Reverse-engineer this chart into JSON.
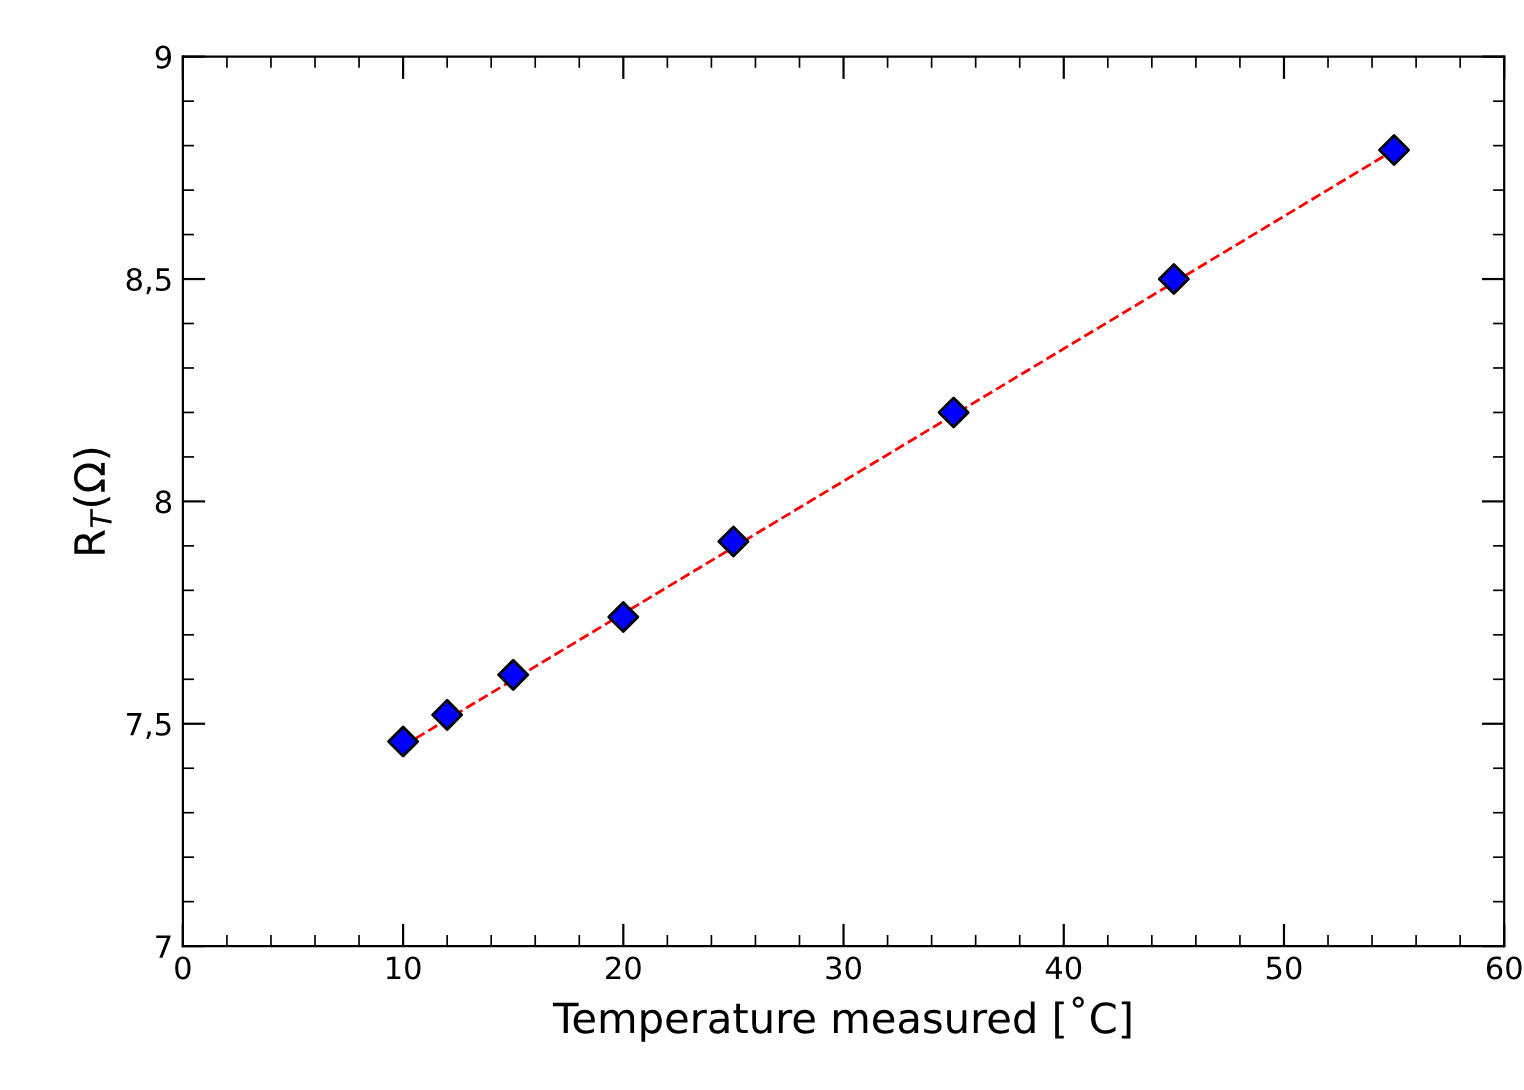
{
  "chart_data": {
    "type": "scatter",
    "xlabel": "Temperature measured [˚C]",
    "ylabel": "R$_{T}$(Ω)",
    "xlim": [
      0,
      60
    ],
    "xticks": [
      0,
      10,
      20,
      30,
      40,
      50,
      60
    ],
    "ylim": [
      7,
      9
    ],
    "yticks": [
      7,
      {
        "value": 7.5,
        "label": "7,5"
      },
      8,
      {
        "value": 8.5,
        "label": "8,5"
      },
      9
    ],
    "grid": false,
    "marker": "diamond",
    "series": [
      {
        "type": "line",
        "color": "#ff0000",
        "line_style": "dashed",
        "marker": "none",
        "x": [
          10,
          55
        ],
        "values": [
          7.45,
          8.79
        ]
      },
      {
        "color": "#0000ff",
        "x": [
          10,
          12,
          15,
          20,
          25,
          35,
          45,
          55
        ],
        "values": [
          7.46,
          7.52,
          7.61,
          7.74,
          7.91,
          8.2,
          8.5,
          8.79
        ]
      }
    ]
  }
}
